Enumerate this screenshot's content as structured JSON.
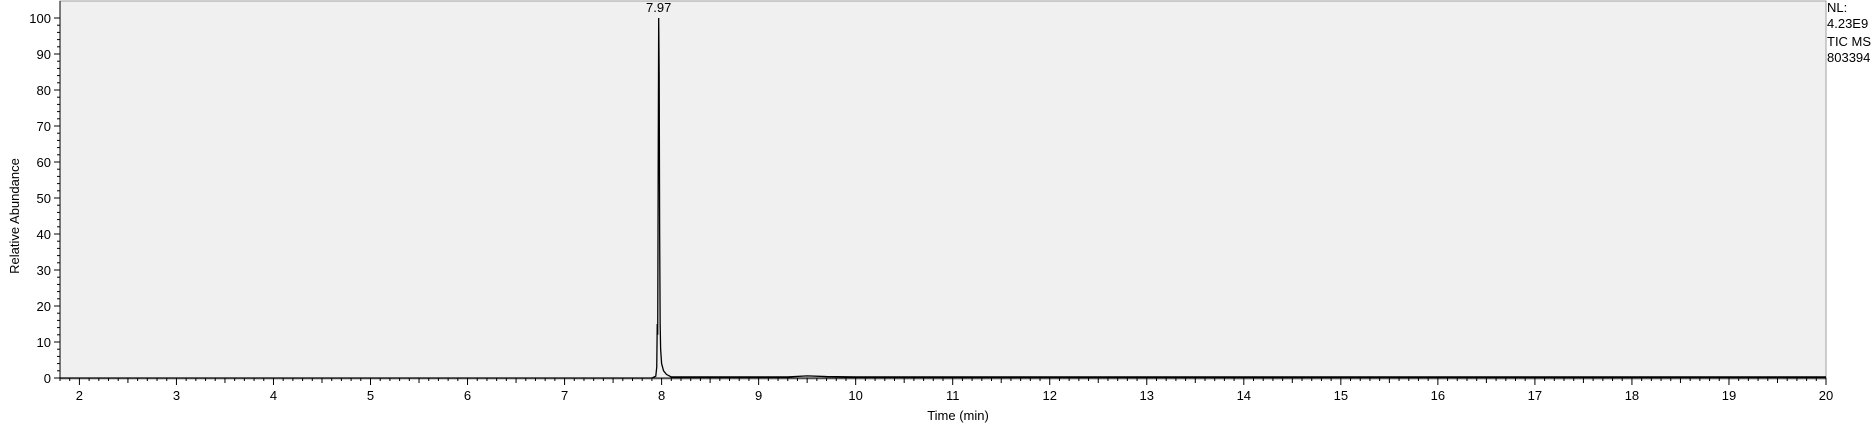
{
  "chart_data": {
    "type": "line",
    "xlabel": "Time (min)",
    "ylabel": "Relative Abundance",
    "xlim": [
      1.8,
      20
    ],
    "ylim": [
      0,
      100
    ],
    "x_ticks": [
      2,
      3,
      4,
      5,
      6,
      7,
      8,
      9,
      10,
      11,
      12,
      13,
      14,
      15,
      16,
      17,
      18,
      19,
      20
    ],
    "y_ticks": [
      0,
      10,
      20,
      30,
      40,
      50,
      60,
      70,
      80,
      90,
      100
    ],
    "grid": false,
    "background": "#f0f0f0",
    "line_color": "#000000",
    "peak_label": "7.97",
    "peak_label_x": 7.97,
    "series": [
      {
        "x": [
          1.8,
          7.9,
          7.94,
          7.95,
          7.955,
          7.96,
          7.965,
          7.97,
          7.975,
          7.98,
          7.985,
          7.99,
          8.0,
          8.02,
          8.05,
          8.1,
          9.3,
          9.5,
          9.7,
          10.0,
          20.0
        ],
        "y": [
          0,
          0,
          0.5,
          3,
          15,
          12,
          60,
          100,
          84,
          40,
          15,
          8,
          4,
          2,
          1,
          0.3,
          0.3,
          0.6,
          0.4,
          0.3,
          0.3
        ]
      }
    ]
  },
  "info_panel": {
    "nl_label": "NL:",
    "nl_value": "4.23E9",
    "trace": "TIC  MS",
    "file": "803394"
  }
}
